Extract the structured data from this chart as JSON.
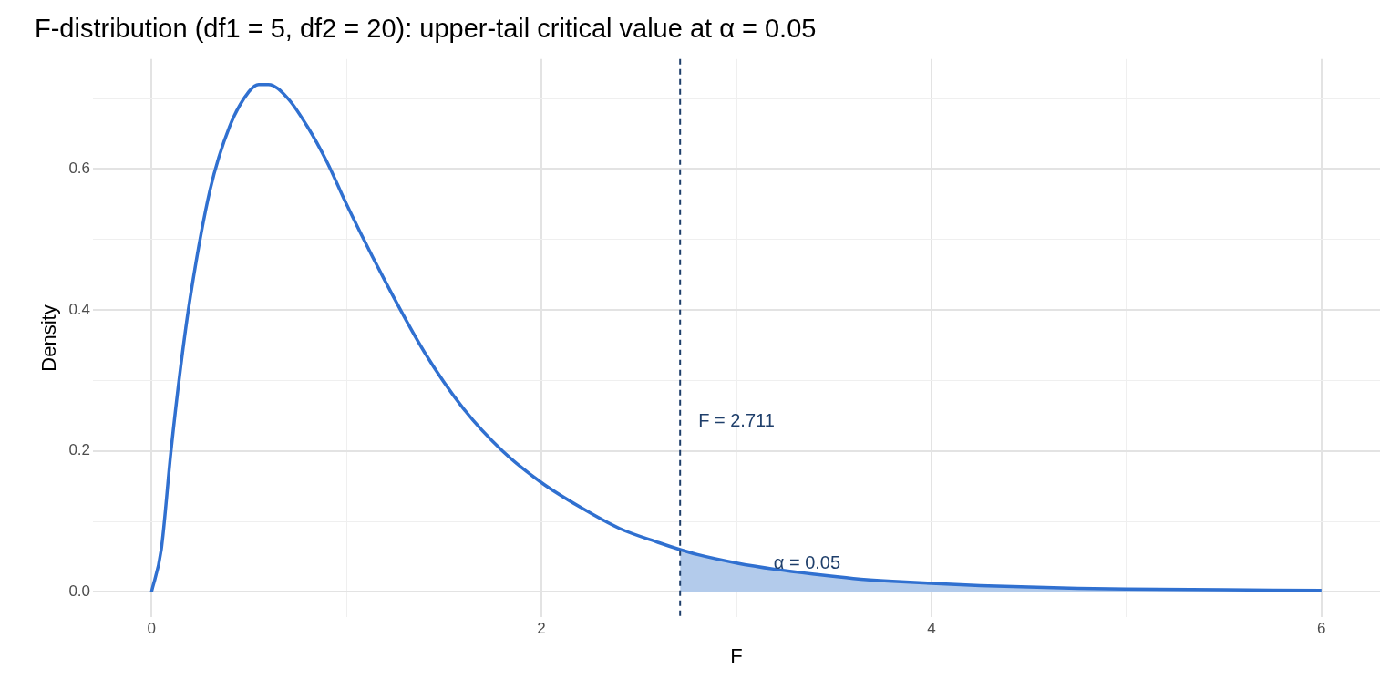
{
  "chart_data": {
    "type": "line",
    "title": "F-distribution (df1 = 5, df2 = 20): upper-tail critical value at α = 0.05",
    "xlabel": "F",
    "ylabel": "Density",
    "series": [
      {
        "type": "area",
        "color": "#b3cbeb",
        "x": [
          2.711,
          2.8,
          3.0,
          3.2,
          3.4,
          3.6,
          3.8,
          4.0,
          4.25,
          4.5,
          4.75,
          5.0,
          5.5,
          6.0
        ],
        "values": [
          0.06,
          0.053,
          0.041,
          0.032,
          0.025,
          0.019,
          0.015,
          0.012,
          0.009,
          0.007,
          0.005,
          0.004,
          0.003,
          0.002
        ]
      },
      {
        "color": "#3070d0",
        "x": [
          0,
          0.05,
          0.1,
          0.15,
          0.2,
          0.3,
          0.4,
          0.5,
          0.55,
          0.6,
          0.7,
          0.8,
          0.9,
          1.0,
          1.2,
          1.4,
          1.6,
          1.8,
          2.0,
          2.2,
          2.4,
          2.6,
          2.711,
          2.8,
          3.0,
          3.2,
          3.4,
          3.6,
          3.8,
          4.0,
          4.25,
          4.5,
          4.75,
          5.0,
          5.5,
          6.0
        ],
        "values": [
          0,
          0.06,
          0.2,
          0.32,
          0.42,
          0.57,
          0.66,
          0.71,
          0.72,
          0.72,
          0.7,
          0.66,
          0.61,
          0.55,
          0.44,
          0.34,
          0.26,
          0.2,
          0.155,
          0.12,
          0.09,
          0.07,
          0.06,
          0.053,
          0.041,
          0.032,
          0.025,
          0.019,
          0.015,
          0.012,
          0.009,
          0.007,
          0.005,
          0.004,
          0.003,
          0.002
        ]
      }
    ],
    "ref_lines": [
      {
        "axis": "x",
        "value": 2.711,
        "color": "#1f3f6b",
        "line_style": "dashed",
        "label": "F = 2.711"
      }
    ],
    "annotations": [
      "α = 0.05"
    ],
    "xlim": [
      -0.3,
      6.3
    ],
    "xticks": [
      0,
      {
        "value": 1,
        "label": null
      },
      2,
      {
        "value": 3,
        "label": null
      },
      4,
      {
        "value": 5,
        "label": null
      },
      6
    ],
    "ylim": [
      -0.036,
      0.756
    ],
    "yticks": [
      {
        "value": 0,
        "label": "0.0"
      },
      {
        "value": 0.1,
        "label": null
      },
      0.2,
      {
        "value": 0.3,
        "label": null
      },
      0.4,
      {
        "value": 0.5,
        "label": null
      },
      0.6,
      {
        "value": 0.7,
        "label": null
      }
    ],
    "grid": true,
    "legend": false,
    "marker": "none"
  }
}
